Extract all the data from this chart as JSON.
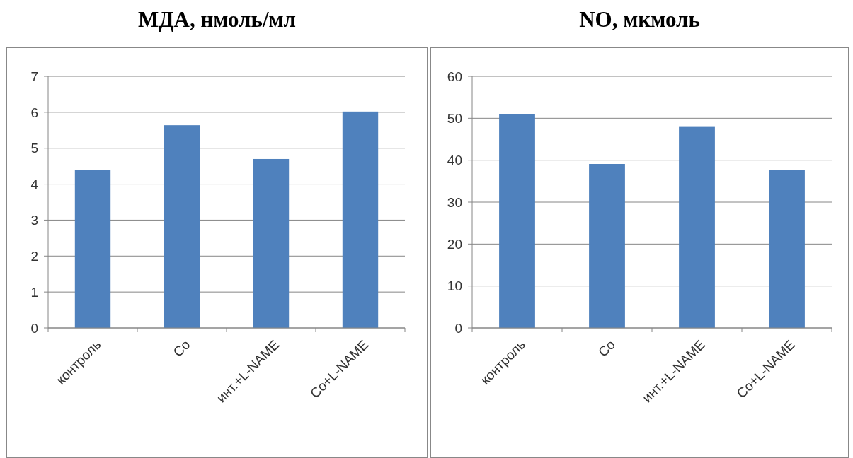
{
  "chart_data": [
    {
      "type": "bar",
      "title": "МДА, нмоль/мл",
      "categories": [
        "контроль",
        "Co",
        "инт.+L-NAME",
        "Co+L-NAME"
      ],
      "values": [
        4.4,
        5.64,
        4.7,
        6.02
      ],
      "color": "#4f81bd",
      "ylim": [
        0,
        7
      ],
      "yticks": [
        0,
        1,
        2,
        3,
        4,
        5,
        6,
        7
      ],
      "grid": "y"
    },
    {
      "type": "bar",
      "title": "NO, мкмоль",
      "categories": [
        "контроль",
        "Co",
        "инт.+L-NAME",
        "Co+L-NAME"
      ],
      "values": [
        50.9,
        39.1,
        48.1,
        37.6
      ],
      "color": "#4f81bd",
      "ylim": [
        0,
        60
      ],
      "yticks": [
        0,
        10,
        20,
        30,
        40,
        50,
        60
      ],
      "grid": "y"
    }
  ]
}
